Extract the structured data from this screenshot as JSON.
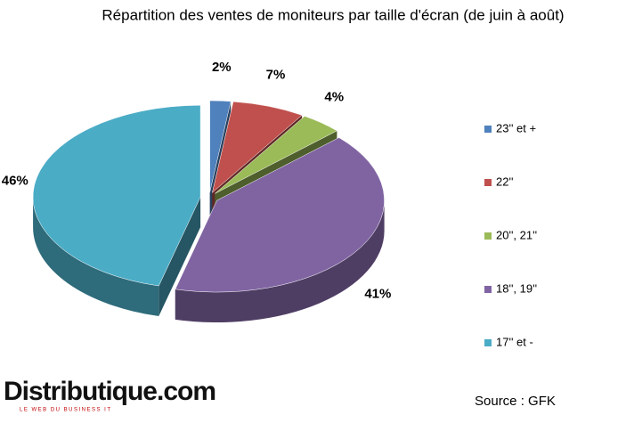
{
  "chart_data": {
    "type": "pie3d",
    "title": "Répartition des ventes de moniteurs par taille d'écran (de juin à août)",
    "categories": [
      "23'' et +",
      "22''",
      "20'', 21''",
      "18'', 19''",
      "17'' et -"
    ],
    "values": [
      2,
      7,
      4,
      41,
      46
    ],
    "value_labels": [
      "2%",
      "7%",
      "4%",
      "41%",
      "46%"
    ],
    "colors": [
      "#4f81bd",
      "#c0504d",
      "#9bbb59",
      "#8064a2",
      "#4bacc6"
    ],
    "legend": "right",
    "source": "Source : GFK",
    "logo": {
      "text": "Distributique.com",
      "tagline": "LE WEB DU BUSINESS IT"
    }
  }
}
